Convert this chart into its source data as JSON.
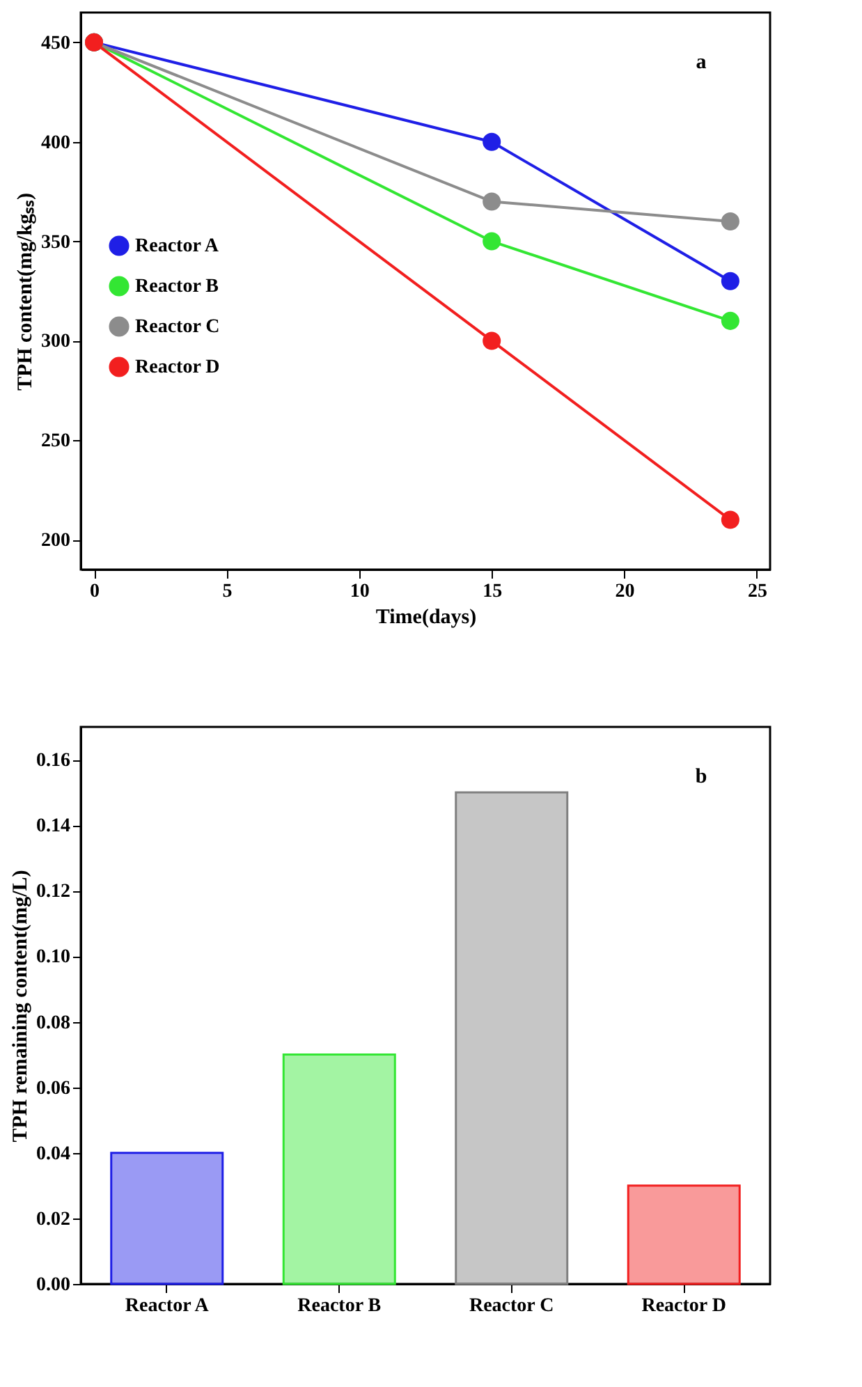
{
  "chart_data": [
    {
      "type": "line",
      "xlabel": "Time(days)",
      "ylabel": "TPH content(mg/kgₛₛ)",
      "annotations": [
        "a"
      ],
      "x": [
        0,
        15,
        24
      ],
      "xlim": [
        -0.5,
        25.5
      ],
      "xticks": [
        0,
        5,
        10,
        15,
        20,
        25
      ],
      "ylim": [
        185,
        465
      ],
      "yticks": [
        200,
        250,
        300,
        350,
        400,
        450
      ],
      "grid": false,
      "legend": "left",
      "marker": "circle",
      "line_style": "solid",
      "series": [
        {
          "name": "Reactor A",
          "color": "#1f1fe6",
          "values": [
            450,
            400,
            330
          ]
        },
        {
          "name": "Reactor B",
          "color": "#33e633",
          "values": [
            450,
            350,
            310
          ]
        },
        {
          "name": "Reactor C",
          "color": "#8c8c8c",
          "values": [
            450,
            370,
            360
          ]
        },
        {
          "name": "Reactor D",
          "color": "#f21f1f",
          "values": [
            450,
            300,
            210
          ]
        }
      ]
    },
    {
      "type": "bar",
      "ylabel": "TPH remaining content(mg/L)",
      "annotations": [
        "b"
      ],
      "categories": [
        "Reactor A",
        "Reactor B",
        "Reactor C",
        "Reactor D"
      ],
      "values": [
        0.04,
        0.07,
        0.15,
        0.03
      ],
      "colors": [
        "#1f1fe6",
        "#33e633",
        "#808080",
        "#f21f1f"
      ],
      "ylim": [
        0,
        0.17
      ],
      "yticks": [
        {
          "value": 0,
          "label": "0.00"
        },
        0.02,
        0.04,
        0.06,
        0.08,
        {
          "value": 0.1,
          "label": "0.10"
        },
        0.12,
        0.14,
        0.16
      ],
      "grid": false
    }
  ]
}
